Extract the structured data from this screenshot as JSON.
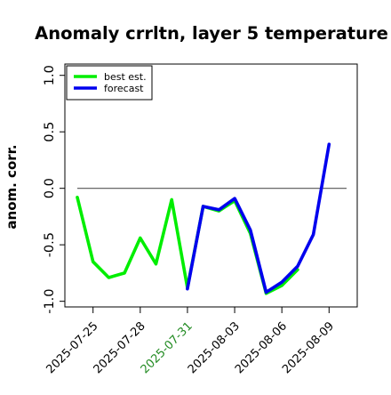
{
  "chart_data": {
    "type": "line",
    "title": "Anomaly crrltn, layer 5 temperature",
    "xlabel": "",
    "ylabel": "anom. corr.",
    "ylim": [
      -1.05,
      1.1
    ],
    "yticks": [
      -1.0,
      -0.5,
      0.0,
      0.5,
      1.0
    ],
    "ytick_labels": [
      "-1.0",
      "-0.5",
      "0.0",
      "0.5",
      "1.0"
    ],
    "x_start": "2025-07-24",
    "x_end": "2025-08-10",
    "xticks": [
      {
        "date": "2025-07-25",
        "label": "2025-07-25",
        "color": "#000000"
      },
      {
        "date": "2025-07-28",
        "label": "2025-07-28",
        "color": "#000000"
      },
      {
        "date": "2025-07-31",
        "label": "2025-07-31",
        "color": "#228B22"
      },
      {
        "date": "2025-08-03",
        "label": "2025-08-03",
        "color": "#000000"
      },
      {
        "date": "2025-08-06",
        "label": "2025-08-06",
        "color": "#000000"
      },
      {
        "date": "2025-08-09",
        "label": "2025-08-09",
        "color": "#000000"
      }
    ],
    "reference_line": 0.0,
    "legend_position": "top-left",
    "series": [
      {
        "name": "best est.",
        "color": "#00ee00",
        "points": [
          [
            "2025-07-24",
            -0.08
          ],
          [
            "2025-07-25",
            -0.65
          ],
          [
            "2025-07-26",
            -0.79
          ],
          [
            "2025-07-27",
            -0.75
          ],
          [
            "2025-07-28",
            -0.44
          ],
          [
            "2025-07-29",
            -0.67
          ],
          [
            "2025-07-30",
            -0.1
          ],
          [
            "2025-07-31",
            -0.88
          ],
          [
            "2025-08-01",
            -0.16
          ],
          [
            "2025-08-02",
            -0.2
          ],
          [
            "2025-08-03",
            -0.11
          ],
          [
            "2025-08-04",
            -0.4
          ],
          [
            "2025-08-05",
            -0.93
          ],
          [
            "2025-08-06",
            -0.86
          ],
          [
            "2025-08-07",
            -0.72
          ]
        ]
      },
      {
        "name": "forecast",
        "color": "#0000ee",
        "points": [
          [
            "2025-07-31",
            -0.89
          ],
          [
            "2025-08-01",
            -0.16
          ],
          [
            "2025-08-02",
            -0.19
          ],
          [
            "2025-08-03",
            -0.09
          ],
          [
            "2025-08-04",
            -0.37
          ],
          [
            "2025-08-05",
            -0.92
          ],
          [
            "2025-08-06",
            -0.83
          ],
          [
            "2025-08-07",
            -0.69
          ],
          [
            "2025-08-08",
            -0.41
          ],
          [
            "2025-08-09",
            0.39
          ]
        ]
      }
    ]
  }
}
